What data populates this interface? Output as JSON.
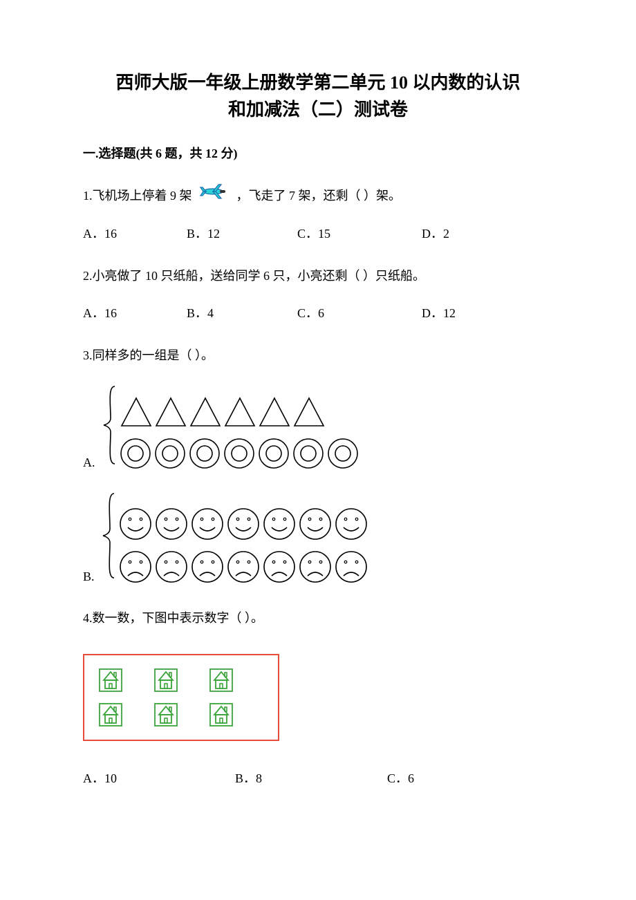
{
  "title_line1": "西师大版一年级上册数学第二单元 10 以内数的认识",
  "title_line2": "和加减法（二）测试卷",
  "section1_header": "一.选择题(共 6 题，共 12 分)",
  "q1": {
    "prefix": "1.飞机场上停着 9 架",
    "suffix": "，飞走了 7 架，还剩（     ）架。",
    "options": {
      "a": "A．16",
      "b": "B．12",
      "c": "C．15",
      "d": "D．2"
    }
  },
  "q2": {
    "text": "2.小亮做了 10 只纸船，送给同学 6 只，小亮还剩（     ）只纸船。",
    "options": {
      "a": "A．16",
      "b": "B．4",
      "c": "C．6",
      "d": "D．12"
    }
  },
  "q3": {
    "text": "3.同样多的一组是（     ）。",
    "groupA": {
      "label": "A.",
      "triangles_count": 6,
      "circles_count": 7,
      "triangle_stroke": "#000000",
      "circle_stroke": "#000000"
    },
    "groupB": {
      "label": "B.",
      "smiles_count": 7,
      "frowns_count": 7,
      "face_stroke": "#000000"
    }
  },
  "q4": {
    "text": "4.数一数，下图中表示数字（     ）。",
    "houses_count": 6,
    "house_color": "#3ba53b",
    "border_color": "#e74c3c",
    "options": {
      "a": "A．10",
      "b": "B．8",
      "c": "C．6"
    }
  },
  "colors": {
    "text": "#000000",
    "plane_body": "#2ad4d4",
    "plane_outline": "#1a6bb0"
  }
}
